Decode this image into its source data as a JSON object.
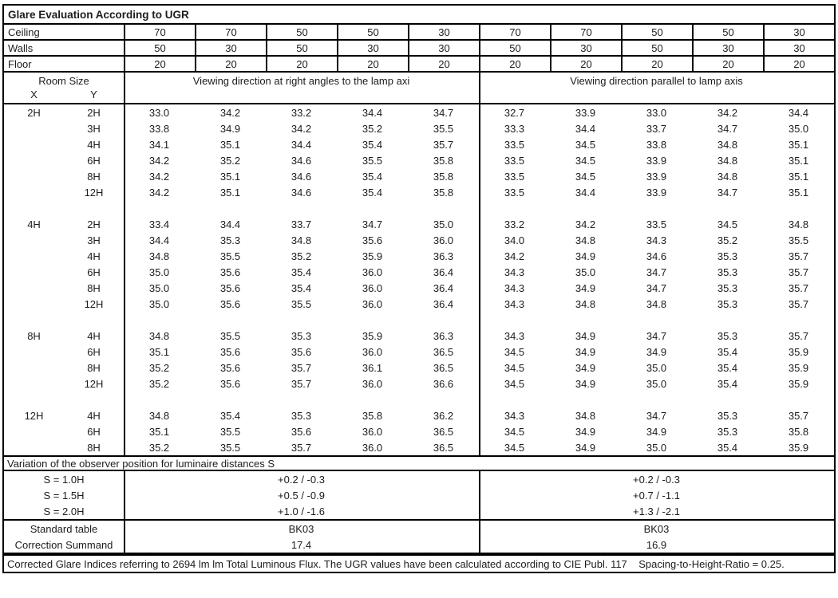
{
  "title": "Glare Evaluation According to UGR",
  "reflectances": {
    "rows": [
      {
        "label": "Ceiling",
        "values": [
          "70",
          "70",
          "50",
          "50",
          "30",
          "70",
          "70",
          "50",
          "50",
          "30"
        ]
      },
      {
        "label": "Walls",
        "values": [
          "50",
          "30",
          "50",
          "30",
          "30",
          "50",
          "30",
          "50",
          "30",
          "30"
        ]
      },
      {
        "label": "Floor",
        "values": [
          "20",
          "20",
          "20",
          "20",
          "20",
          "20",
          "20",
          "20",
          "20",
          "20"
        ]
      }
    ]
  },
  "header": {
    "room_size": "Room Size",
    "x_label": "X",
    "y_label": "Y",
    "left_direction": "Viewing direction at right angles to the lamp axi",
    "right_direction": "Viewing direction parallel to lamp axis"
  },
  "body_blocks": [
    {
      "x": "2H",
      "rows": [
        {
          "y": "2H",
          "values": [
            "33.0",
            "34.2",
            "33.2",
            "34.4",
            "34.7",
            "32.7",
            "33.9",
            "33.0",
            "34.2",
            "34.4"
          ]
        },
        {
          "y": "3H",
          "values": [
            "33.8",
            "34.9",
            "34.2",
            "35.2",
            "35.5",
            "33.3",
            "34.4",
            "33.7",
            "34.7",
            "35.0"
          ]
        },
        {
          "y": "4H",
          "values": [
            "34.1",
            "35.1",
            "34.4",
            "35.4",
            "35.7",
            "33.5",
            "34.5",
            "33.8",
            "34.8",
            "35.1"
          ]
        },
        {
          "y": "6H",
          "values": [
            "34.2",
            "35.2",
            "34.6",
            "35.5",
            "35.8",
            "33.5",
            "34.5",
            "33.9",
            "34.8",
            "35.1"
          ]
        },
        {
          "y": "8H",
          "values": [
            "34.2",
            "35.1",
            "34.6",
            "35.4",
            "35.8",
            "33.5",
            "34.5",
            "33.9",
            "34.8",
            "35.1"
          ]
        },
        {
          "y": "12H",
          "values": [
            "34.2",
            "35.1",
            "34.6",
            "35.4",
            "35.8",
            "33.5",
            "34.4",
            "33.9",
            "34.7",
            "35.1"
          ]
        }
      ]
    },
    {
      "x": "4H",
      "rows": [
        {
          "y": "2H",
          "values": [
            "33.4",
            "34.4",
            "33.7",
            "34.7",
            "35.0",
            "33.2",
            "34.2",
            "33.5",
            "34.5",
            "34.8"
          ]
        },
        {
          "y": "3H",
          "values": [
            "34.4",
            "35.3",
            "34.8",
            "35.6",
            "36.0",
            "34.0",
            "34.8",
            "34.3",
            "35.2",
            "35.5"
          ]
        },
        {
          "y": "4H",
          "values": [
            "34.8",
            "35.5",
            "35.2",
            "35.9",
            "36.3",
            "34.2",
            "34.9",
            "34.6",
            "35.3",
            "35.7"
          ]
        },
        {
          "y": "6H",
          "values": [
            "35.0",
            "35.6",
            "35.4",
            "36.0",
            "36.4",
            "34.3",
            "35.0",
            "34.7",
            "35.3",
            "35.7"
          ]
        },
        {
          "y": "8H",
          "values": [
            "35.0",
            "35.6",
            "35.4",
            "36.0",
            "36.4",
            "34.3",
            "34.9",
            "34.7",
            "35.3",
            "35.7"
          ]
        },
        {
          "y": "12H",
          "values": [
            "35.0",
            "35.6",
            "35.5",
            "36.0",
            "36.4",
            "34.3",
            "34.8",
            "34.8",
            "35.3",
            "35.7"
          ]
        }
      ]
    },
    {
      "x": "8H",
      "rows": [
        {
          "y": "4H",
          "values": [
            "34.8",
            "35.5",
            "35.3",
            "35.9",
            "36.3",
            "34.3",
            "34.9",
            "34.7",
            "35.3",
            "35.7"
          ]
        },
        {
          "y": "6H",
          "values": [
            "35.1",
            "35.6",
            "35.6",
            "36.0",
            "36.5",
            "34.5",
            "34.9",
            "34.9",
            "35.4",
            "35.9"
          ]
        },
        {
          "y": "8H",
          "values": [
            "35.2",
            "35.6",
            "35.7",
            "36.1",
            "36.5",
            "34.5",
            "34.9",
            "35.0",
            "35.4",
            "35.9"
          ]
        },
        {
          "y": "12H",
          "values": [
            "35.2",
            "35.6",
            "35.7",
            "36.0",
            "36.6",
            "34.5",
            "34.9",
            "35.0",
            "35.4",
            "35.9"
          ]
        }
      ]
    },
    {
      "x": "12H",
      "rows": [
        {
          "y": "4H",
          "values": [
            "34.8",
            "35.4",
            "35.3",
            "35.8",
            "36.2",
            "34.3",
            "34.8",
            "34.7",
            "35.3",
            "35.7"
          ]
        },
        {
          "y": "6H",
          "values": [
            "35.1",
            "35.5",
            "35.6",
            "36.0",
            "36.5",
            "34.5",
            "34.9",
            "34.9",
            "35.3",
            "35.8"
          ]
        },
        {
          "y": "8H",
          "values": [
            "35.2",
            "35.5",
            "35.7",
            "36.0",
            "36.5",
            "34.5",
            "34.9",
            "35.0",
            "35.4",
            "35.9"
          ]
        }
      ]
    }
  ],
  "variation": {
    "title": "Variation of the observer position for luminaire distances S",
    "rows": [
      {
        "label": "S = 1.0H",
        "left": "+0.2 / -0.3",
        "right": "+0.2 / -0.3"
      },
      {
        "label": "S = 1.5H",
        "left": "+0.5 / -0.9",
        "right": "+0.7 / -1.1"
      },
      {
        "label": "S = 2.0H",
        "left": "+1.0 / -1.6",
        "right": "+1.3 / -2.1"
      }
    ]
  },
  "summary": {
    "rows": [
      {
        "label": "Standard table",
        "left": "BK03",
        "right": "BK03"
      },
      {
        "label": "Correction Summand",
        "left": "17.4",
        "right": "16.9"
      }
    ]
  },
  "footer": {
    "text": "Corrected Glare Indices referring to 2694 lm lm Total Luminous Flux. The UGR values have been calculated according to CIE Publ. 117    Spacing-to-Height-Ratio = 0.25."
  }
}
